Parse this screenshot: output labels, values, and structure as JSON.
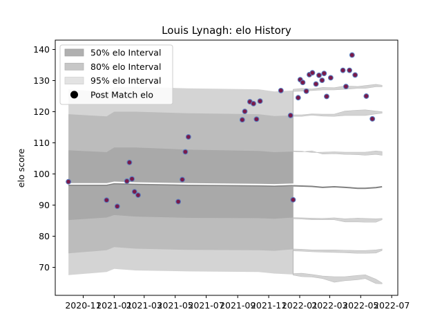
{
  "chart_data": {
    "type": "scatter",
    "title": "Louis Lynagh: elo History",
    "xlabel": "",
    "ylabel": "elo score",
    "xlim": [
      "2020-09-07",
      "2022-07-13"
    ],
    "ylim": [
      61,
      143
    ],
    "x_ticks": [
      "2020-11",
      "2021-01",
      "2021-03",
      "2021-05",
      "2021-07",
      "2021-09",
      "2021-11",
      "2022-01",
      "2022-03",
      "2022-05",
      "2022-07"
    ],
    "y_ticks": [
      70,
      80,
      90,
      100,
      110,
      120,
      130,
      140
    ],
    "grid": false,
    "legend": {
      "position": "top-left",
      "entries": [
        {
          "label": "50% elo Interval",
          "color": "#bdbdbd"
        },
        {
          "label": "80% elo Interval",
          "color": "#cfcfcf"
        },
        {
          "label": "95% elo Interval",
          "color": "#e6e6e6"
        },
        {
          "label": "Post Match elo",
          "color": "#000000"
        }
      ]
    },
    "colors": {
      "point_face": "#7a1a4a",
      "point_edge": "#5a7fc0",
      "mean_line_history": "#ffffff",
      "mean_line_forecast": "#808080"
    },
    "intervals": {
      "history_x": [
        "2020-10-03",
        "2020-12-17",
        "2021-01-01",
        "2021-02-12",
        "2021-05-27",
        "2021-10-12",
        "2021-11-12",
        "2021-12-19"
      ],
      "history_mean": [
        96.8,
        96.8,
        97.3,
        97.1,
        96.8,
        96.6,
        96.5,
        96.7
      ],
      "history_p50": [
        [
          85.2,
          107.6
        ],
        [
          86.0,
          107.0
        ],
        [
          86.8,
          108.5
        ],
        [
          86.3,
          108.5
        ],
        [
          85.9,
          107.8
        ],
        [
          85.8,
          107.4
        ],
        [
          85.6,
          107.0
        ],
        [
          86.0,
          107.2
        ]
      ],
      "history_p80": [
        [
          74.5,
          119.2
        ],
        [
          75.5,
          118.5
        ],
        [
          76.5,
          120.0
        ],
        [
          76.0,
          120.0
        ],
        [
          75.6,
          119.5
        ],
        [
          75.5,
          119.2
        ],
        [
          75.3,
          118.6
        ],
        [
          75.8,
          118.8
        ]
      ],
      "history_p95": [
        [
          67.5,
          127.2
        ],
        [
          68.5,
          126.3
        ],
        [
          69.5,
          127.9
        ],
        [
          69.0,
          128.0
        ],
        [
          68.7,
          127.5
        ],
        [
          68.5,
          127.2
        ],
        [
          68.0,
          126.5
        ],
        [
          67.7,
          126.8
        ]
      ],
      "forecast_x": [
        "2021-12-19",
        "2022-01-05",
        "2022-01-25",
        "2022-02-15",
        "2022-03-10",
        "2022-03-31",
        "2022-04-25",
        "2022-05-10",
        "2022-05-31",
        "2022-06-12"
      ],
      "forecast_mean": [
        96.2,
        96.1,
        96.0,
        95.7,
        95.9,
        95.7,
        95.4,
        95.4,
        95.6,
        95.9
      ],
      "forecast_bands": {
        "p50_upper": [
          [
            107.2,
            107.4
          ],
          [
            107.1,
            107.3
          ],
          [
            107.4,
            106.9
          ],
          [
            106.4,
            107.0
          ],
          [
            106.5,
            107.1
          ],
          [
            106.3,
            107.0
          ],
          [
            106.2,
            107.0
          ],
          [
            106.0,
            107.0
          ],
          [
            106.3,
            107.4
          ],
          [
            106.0,
            107.2
          ]
        ],
        "p50_lower": [
          [
            85.6,
            86.0
          ],
          [
            85.5,
            85.9
          ],
          [
            85.3,
            85.8
          ],
          [
            85.3,
            85.7
          ],
          [
            85.3,
            85.9
          ],
          [
            84.6,
            85.6
          ],
          [
            84.6,
            85.8
          ],
          [
            84.5,
            85.7
          ],
          [
            84.5,
            85.6
          ],
          [
            85.3,
            85.7
          ]
        ],
        "p80_upper": [
          [
            118.5,
            119.0
          ],
          [
            118.5,
            119.0
          ],
          [
            118.9,
            119.3
          ],
          [
            118.6,
            119.2
          ],
          [
            118.5,
            119.2
          ],
          [
            118.8,
            120.2
          ],
          [
            118.8,
            120.5
          ],
          [
            118.8,
            120.6
          ],
          [
            119.3,
            120.2
          ],
          [
            119.5,
            120.0
          ]
        ],
        "p80_lower": [
          [
            75.3,
            75.9
          ],
          [
            75.2,
            75.8
          ],
          [
            75.0,
            75.6
          ],
          [
            74.9,
            75.6
          ],
          [
            74.8,
            75.6
          ],
          [
            74.7,
            75.5
          ],
          [
            74.5,
            75.4
          ],
          [
            74.5,
            75.4
          ],
          [
            74.6,
            75.6
          ],
          [
            75.4,
            75.9
          ]
        ],
        "p95_upper": [
          [
            126.5,
            127.2
          ],
          [
            126.6,
            127.5
          ],
          [
            126.8,
            127.3
          ],
          [
            127.0,
            127.8
          ],
          [
            127.0,
            127.7
          ],
          [
            127.2,
            128.3
          ],
          [
            127.5,
            128.1
          ],
          [
            127.5,
            128.4
          ],
          [
            128.0,
            128.8
          ],
          [
            128.0,
            128.5
          ]
        ],
        "p95_lower": [
          [
            67.5,
            68.0
          ],
          [
            67.0,
            68.1
          ],
          [
            66.9,
            67.7
          ],
          [
            66.4,
            67.2
          ],
          [
            65.2,
            67.0
          ],
          [
            65.7,
            67.0
          ],
          [
            66.0,
            67.4
          ],
          [
            66.4,
            67.6
          ],
          [
            64.8,
            66.2
          ],
          [
            64.7,
            65.0
          ]
        ]
      }
    },
    "points": [
      {
        "x": "2020-10-03",
        "y": 97.5
      },
      {
        "x": "2020-12-17",
        "y": 91.6
      },
      {
        "x": "2021-01-07",
        "y": 89.6
      },
      {
        "x": "2021-01-26",
        "y": 97.7
      },
      {
        "x": "2021-01-31",
        "y": 103.7
      },
      {
        "x": "2021-02-05",
        "y": 98.4
      },
      {
        "x": "2021-02-10",
        "y": 94.3
      },
      {
        "x": "2021-02-17",
        "y": 93.2
      },
      {
        "x": "2021-05-07",
        "y": 91.1
      },
      {
        "x": "2021-05-15",
        "y": 98.2
      },
      {
        "x": "2021-05-21",
        "y": 107.1
      },
      {
        "x": "2021-05-27",
        "y": 111.9
      },
      {
        "x": "2021-09-10",
        "y": 117.4
      },
      {
        "x": "2021-09-15",
        "y": 120.1
      },
      {
        "x": "2021-09-25",
        "y": 123.2
      },
      {
        "x": "2021-10-02",
        "y": 122.6
      },
      {
        "x": "2021-10-08",
        "y": 117.6
      },
      {
        "x": "2021-10-15",
        "y": 123.4
      },
      {
        "x": "2021-11-25",
        "y": 126.8
      },
      {
        "x": "2021-12-14",
        "y": 118.8
      },
      {
        "x": "2021-12-19",
        "y": 91.7
      },
      {
        "x": "2021-12-29",
        "y": 124.5
      },
      {
        "x": "2022-01-02",
        "y": 130.3
      },
      {
        "x": "2022-01-07",
        "y": 129.4
      },
      {
        "x": "2022-01-14",
        "y": 126.6
      },
      {
        "x": "2022-01-20",
        "y": 131.9
      },
      {
        "x": "2022-01-26",
        "y": 132.5
      },
      {
        "x": "2022-02-02",
        "y": 128.9
      },
      {
        "x": "2022-02-08",
        "y": 131.7
      },
      {
        "x": "2022-02-14",
        "y": 130.1
      },
      {
        "x": "2022-02-18",
        "y": 132.3
      },
      {
        "x": "2022-02-23",
        "y": 124.9
      },
      {
        "x": "2022-03-03",
        "y": 130.9
      },
      {
        "x": "2022-03-27",
        "y": 133.3
      },
      {
        "x": "2022-04-02",
        "y": 128.1
      },
      {
        "x": "2022-04-09",
        "y": 133.3
      },
      {
        "x": "2022-04-14",
        "y": 138.2
      },
      {
        "x": "2022-04-20",
        "y": 131.8
      },
      {
        "x": "2022-05-12",
        "y": 125.0
      },
      {
        "x": "2022-05-24",
        "y": 117.7
      }
    ]
  }
}
